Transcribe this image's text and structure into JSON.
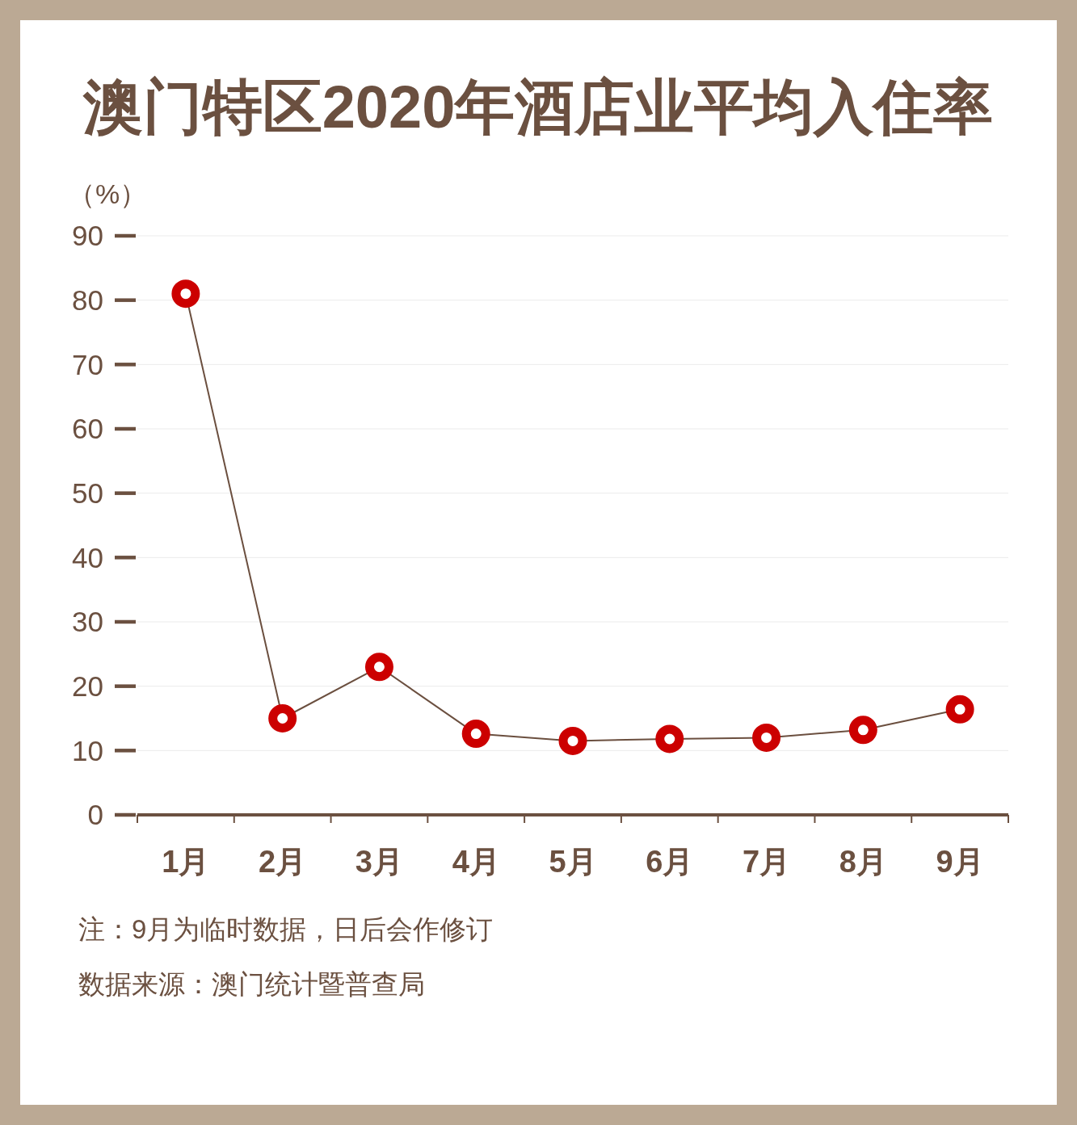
{
  "chart_data": {
    "type": "line",
    "title": "澳门特区2020年酒店业平均入住率",
    "ylabel": "（%）",
    "categories": [
      "1月",
      "2月",
      "3月",
      "4月",
      "5月",
      "6月",
      "7月",
      "8月",
      "9月"
    ],
    "series": [
      {
        "color": "#6b4f3f",
        "colors": [
          "#cc0000",
          "#cc0000",
          "#cc0000",
          "#cc0000",
          "#cc0000",
          "#cc0000",
          "#cc0000",
          "#cc0000",
          "#cc0000"
        ],
        "values": [
          81,
          15,
          23,
          12.6,
          11.5,
          11.8,
          12.0,
          13.2,
          16.4
        ]
      }
    ],
    "ylim": [
      0,
      90
    ],
    "yticks": [
      0,
      10,
      20,
      30,
      40,
      50,
      60,
      70,
      80,
      90
    ],
    "grid": "y",
    "marker": "circle",
    "line_style": "solid",
    "annotations": [
      "注：9月为临时数据，日后会作修订",
      "数据来源：澳门统计暨普查局"
    ]
  }
}
